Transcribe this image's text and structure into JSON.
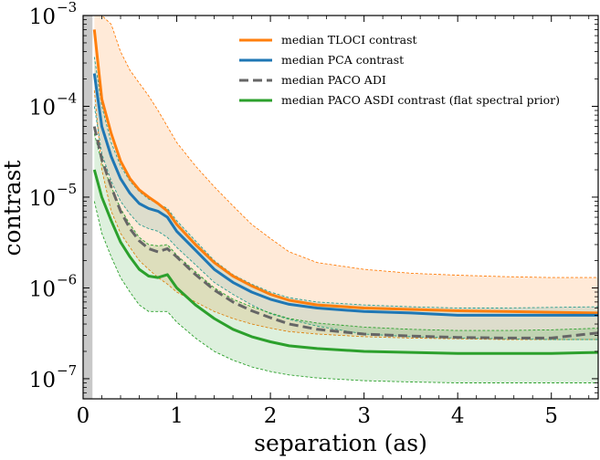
{
  "chart_data": {
    "type": "line",
    "xlabel": "separation (as)",
    "ylabel": "contrast",
    "xlim": [
      0,
      5.5
    ],
    "ylim": [
      6e-08,
      0.001
    ],
    "yscale": "log",
    "x_ticks": [
      "0",
      "1",
      "2",
      "3",
      "4",
      "5"
    ],
    "y_ticks": [
      {
        "base": "10",
        "exp": "−3",
        "value": 0.001
      },
      {
        "base": "10",
        "exp": "−4",
        "value": 0.0001
      },
      {
        "base": "10",
        "exp": "−5",
        "value": 1e-05
      },
      {
        "base": "10",
        "exp": "−6",
        "value": 1e-06
      },
      {
        "base": "10",
        "exp": "−7",
        "value": 1e-07
      }
    ],
    "legend_position": "top-right",
    "masked_region": [
      0,
      0.1
    ],
    "series": [
      {
        "name": "median TLOCI contrast",
        "color": "#ff7f0e",
        "style": "solid",
        "x": [
          0.12,
          0.2,
          0.3,
          0.4,
          0.5,
          0.6,
          0.7,
          0.8,
          0.9,
          1.0,
          1.2,
          1.4,
          1.6,
          1.8,
          2.0,
          2.2,
          2.5,
          3.0,
          3.5,
          4.0,
          4.5,
          5.0,
          5.5
        ],
        "y": [
          0.0007,
          0.00012,
          5e-05,
          2.5e-05,
          1.6e-05,
          1.2e-05,
          1e-05,
          8.5e-06,
          7e-06,
          5e-06,
          3e-06,
          1.9e-06,
          1.35e-06,
          1.05e-06,
          8.5e-07,
          7.3e-07,
          6.5e-07,
          6e-07,
          5.8e-07,
          5.6e-07,
          5.5e-07,
          5.4e-07,
          5.3e-07
        ],
        "band": {
          "color": "#ff7f0e",
          "lower": [
            0.00015,
            2e-05,
            7e-06,
            4e-06,
            2.8e-06,
            2e-06,
            1.6e-06,
            1.3e-06,
            1.1e-06,
            9e-07,
            7e-07,
            5.5e-07,
            4.6e-07,
            4e-07,
            3.6e-07,
            3.3e-07,
            3.1e-07,
            2.9e-07,
            2.8e-07,
            2.75e-07,
            2.7e-07,
            2.7e-07,
            2.7e-07
          ],
          "upper": [
            0.001,
            0.001,
            0.0008,
            0.0004,
            0.00025,
            0.00018,
            0.00013,
            9e-05,
            6e-05,
            4e-05,
            2.2e-05,
            1.3e-05,
            8e-06,
            5e-06,
            3.5e-06,
            2.5e-06,
            1.9e-06,
            1.6e-06,
            1.45e-06,
            1.38e-06,
            1.33e-06,
            1.3e-06,
            1.3e-06
          ]
        }
      },
      {
        "name": "median PCA contrast",
        "color": "#1f77b4",
        "style": "solid",
        "x": [
          0.12,
          0.2,
          0.3,
          0.4,
          0.5,
          0.6,
          0.7,
          0.8,
          0.9,
          1.0,
          1.2,
          1.4,
          1.6,
          1.8,
          2.0,
          2.2,
          2.5,
          3.0,
          3.5,
          4.0,
          4.5,
          5.0,
          5.5
        ],
        "y": [
          0.00023,
          6e-05,
          2.8e-05,
          1.6e-05,
          1.1e-05,
          8.5e-06,
          7.5e-06,
          7e-06,
          6e-06,
          4.2e-06,
          2.6e-06,
          1.6e-06,
          1.15e-06,
          9e-07,
          7.5e-07,
          6.6e-07,
          6e-07,
          5.5e-07,
          5.3e-07,
          5e-07,
          5e-07,
          5e-07,
          5e-07
        ],
        "band": {
          "color": "#2a9d8f",
          "lower": [
            0.0001,
            3e-05,
            1.5e-05,
            9e-06,
            6.5e-06,
            5e-06,
            4.5e-06,
            4.2e-06,
            3.6e-06,
            2.8e-06,
            1.8e-06,
            1.15e-06,
            8.5e-07,
            6.5e-07,
            5.2e-07,
            4.5e-07,
            3.8e-07,
            3.1e-07,
            2.9e-07,
            2.8e-07,
            2.75e-07,
            2.7e-07,
            2.7e-07
          ],
          "upper": [
            0.00035,
            0.0001,
            4e-05,
            2.2e-05,
            1.5e-05,
            1.15e-05,
            9.5e-06,
            8.5e-06,
            7.5e-06,
            5.5e-06,
            3.3e-06,
            2e-06,
            1.4e-06,
            1.1e-06,
            9e-07,
            7.8e-07,
            7e-07,
            6.5e-07,
            6.2e-07,
            6e-07,
            6e-07,
            6.1e-07,
            6.2e-07
          ]
        }
      },
      {
        "name": "median PACO ADI",
        "color": "#666666",
        "style": "dashed",
        "x": [
          0.12,
          0.2,
          0.3,
          0.4,
          0.5,
          0.6,
          0.7,
          0.8,
          0.9,
          1.0,
          1.2,
          1.4,
          1.6,
          1.8,
          2.0,
          2.2,
          2.5,
          3.0,
          3.5,
          4.0,
          4.5,
          5.0,
          5.5
        ],
        "y": [
          6e-05,
          2.6e-05,
          1.3e-05,
          7e-06,
          4.5e-06,
          3.3e-06,
          2.7e-06,
          2.5e-06,
          2.7e-06,
          2.2e-06,
          1.4e-06,
          9.5e-07,
          7e-07,
          5.6e-07,
          4.7e-07,
          4e-07,
          3.5e-07,
          3.1e-07,
          2.95e-07,
          2.85e-07,
          2.8e-07,
          2.8e-07,
          3.2e-07
        ]
      },
      {
        "name": "median PACO ASDI contrast (flat spectral prior)",
        "color": "#2ca02c",
        "style": "solid",
        "x": [
          0.12,
          0.2,
          0.3,
          0.4,
          0.5,
          0.6,
          0.7,
          0.8,
          0.9,
          1.0,
          1.2,
          1.4,
          1.6,
          1.8,
          2.0,
          2.2,
          2.5,
          3.0,
          3.5,
          4.0,
          4.5,
          5.0,
          5.5
        ],
        "y": [
          2e-05,
          1e-05,
          5.5e-06,
          3.2e-06,
          2.2e-06,
          1.6e-06,
          1.35e-06,
          1.3e-06,
          1.4e-06,
          1e-06,
          6.5e-07,
          4.6e-07,
          3.5e-07,
          2.9e-07,
          2.55e-07,
          2.3e-07,
          2.15e-07,
          2e-07,
          1.95e-07,
          1.9e-07,
          1.9e-07,
          1.9e-07,
          1.95e-07
        ],
        "band": {
          "color": "#2ca02c",
          "lower": [
            9e-06,
            4e-06,
            2.2e-06,
            1.3e-06,
            9e-07,
            6.5e-07,
            5.5e-07,
            5.5e-07,
            5.5e-07,
            4.2e-07,
            2.8e-07,
            2e-07,
            1.6e-07,
            1.35e-07,
            1.2e-07,
            1.1e-07,
            1.02e-07,
            9.5e-08,
            9.2e-08,
            9e-08,
            9e-08,
            9e-08,
            9e-08
          ],
          "upper": [
            5e-05,
            2.4e-05,
            1.3e-05,
            7.5e-06,
            5e-06,
            3.6e-06,
            3e-06,
            2.9e-06,
            3e-06,
            2.3e-06,
            1.5e-06,
            1e-06,
            7.5e-07,
            6.2e-07,
            5.3e-07,
            4.6e-07,
            4.1e-07,
            3.7e-07,
            3.5e-07,
            3.4e-07,
            3.4e-07,
            3.45e-07,
            3.6e-07
          ]
        }
      }
    ]
  }
}
